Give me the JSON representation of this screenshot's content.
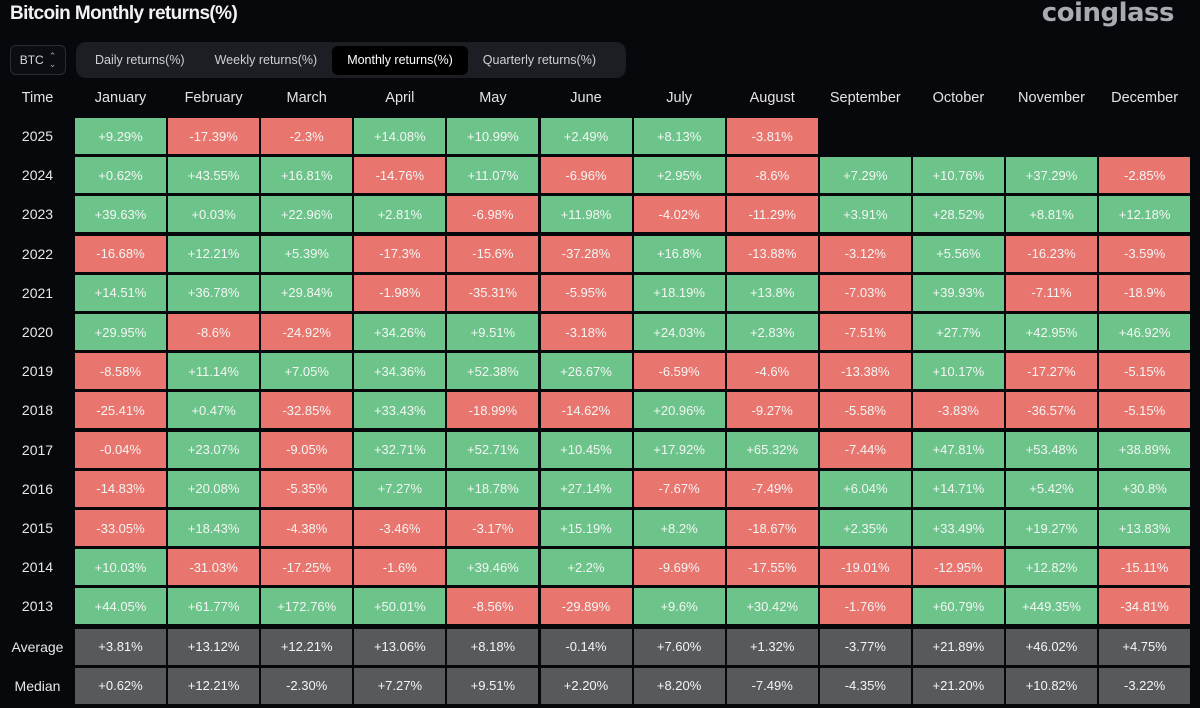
{
  "title": "Bitcoin Monthly returns(%)",
  "logo": "coinglass",
  "asset_select": {
    "value": "BTC"
  },
  "tabs": [
    {
      "label": "Daily returns(%)",
      "active": false
    },
    {
      "label": "Weekly returns(%)",
      "active": false
    },
    {
      "label": "Monthly returns(%)",
      "active": true
    },
    {
      "label": "Quarterly returns(%)",
      "active": false
    }
  ],
  "colors": {
    "positive": "#6cc48a",
    "negative": "#e9756f",
    "summary": "#58595c",
    "background": "#07080c"
  },
  "table": {
    "time_header": "Time",
    "months": [
      "January",
      "February",
      "March",
      "April",
      "May",
      "June",
      "July",
      "August",
      "September",
      "October",
      "November",
      "December"
    ],
    "rows": [
      {
        "year": "2025",
        "values": [
          "+9.29%",
          "-17.39%",
          "-2.3%",
          "+14.08%",
          "+10.99%",
          "+2.49%",
          "+8.13%",
          "-3.81%"
        ]
      },
      {
        "year": "2024",
        "values": [
          "+0.62%",
          "+43.55%",
          "+16.81%",
          "-14.76%",
          "+11.07%",
          "-6.96%",
          "+2.95%",
          "-8.6%",
          "+7.29%",
          "+10.76%",
          "+37.29%",
          "-2.85%"
        ]
      },
      {
        "year": "2023",
        "values": [
          "+39.63%",
          "+0.03%",
          "+22.96%",
          "+2.81%",
          "-6.98%",
          "+11.98%",
          "-4.02%",
          "-11.29%",
          "+3.91%",
          "+28.52%",
          "+8.81%",
          "+12.18%"
        ]
      },
      {
        "year": "2022",
        "values": [
          "-16.68%",
          "+12.21%",
          "+5.39%",
          "-17.3%",
          "-15.6%",
          "-37.28%",
          "+16.8%",
          "-13.88%",
          "-3.12%",
          "+5.56%",
          "-16.23%",
          "-3.59%"
        ]
      },
      {
        "year": "2021",
        "values": [
          "+14.51%",
          "+36.78%",
          "+29.84%",
          "-1.98%",
          "-35.31%",
          "-5.95%",
          "+18.19%",
          "+13.8%",
          "-7.03%",
          "+39.93%",
          "-7.11%",
          "-18.9%"
        ]
      },
      {
        "year": "2020",
        "values": [
          "+29.95%",
          "-8.6%",
          "-24.92%",
          "+34.26%",
          "+9.51%",
          "-3.18%",
          "+24.03%",
          "+2.83%",
          "-7.51%",
          "+27.7%",
          "+42.95%",
          "+46.92%"
        ]
      },
      {
        "year": "2019",
        "values": [
          "-8.58%",
          "+11.14%",
          "+7.05%",
          "+34.36%",
          "+52.38%",
          "+26.67%",
          "-6.59%",
          "-4.6%",
          "-13.38%",
          "+10.17%",
          "-17.27%",
          "-5.15%"
        ]
      },
      {
        "year": "2018",
        "values": [
          "-25.41%",
          "+0.47%",
          "-32.85%",
          "+33.43%",
          "-18.99%",
          "-14.62%",
          "+20.96%",
          "-9.27%",
          "-5.58%",
          "-3.83%",
          "-36.57%",
          "-5.15%"
        ]
      },
      {
        "year": "2017",
        "values": [
          "-0.04%",
          "+23.07%",
          "-9.05%",
          "+32.71%",
          "+52.71%",
          "+10.45%",
          "+17.92%",
          "+65.32%",
          "-7.44%",
          "+47.81%",
          "+53.48%",
          "+38.89%"
        ]
      },
      {
        "year": "2016",
        "values": [
          "-14.83%",
          "+20.08%",
          "-5.35%",
          "+7.27%",
          "+18.78%",
          "+27.14%",
          "-7.67%",
          "-7.49%",
          "+6.04%",
          "+14.71%",
          "+5.42%",
          "+30.8%"
        ]
      },
      {
        "year": "2015",
        "values": [
          "-33.05%",
          "+18.43%",
          "-4.38%",
          "-3.46%",
          "-3.17%",
          "+15.19%",
          "+8.2%",
          "-18.67%",
          "+2.35%",
          "+33.49%",
          "+19.27%",
          "+13.83%"
        ]
      },
      {
        "year": "2014",
        "values": [
          "+10.03%",
          "-31.03%",
          "-17.25%",
          "-1.6%",
          "+39.46%",
          "+2.2%",
          "-9.69%",
          "-17.55%",
          "-19.01%",
          "-12.95%",
          "+12.82%",
          "-15.11%"
        ]
      },
      {
        "year": "2013",
        "values": [
          "+44.05%",
          "+61.77%",
          "+172.76%",
          "+50.01%",
          "-8.56%",
          "-29.89%",
          "+9.6%",
          "+30.42%",
          "-1.76%",
          "+60.79%",
          "+449.35%",
          "-34.81%"
        ]
      }
    ],
    "summary": [
      {
        "label": "Average",
        "values": [
          "+3.81%",
          "+13.12%",
          "+12.21%",
          "+13.06%",
          "+8.18%",
          "-0.14%",
          "+7.60%",
          "+1.32%",
          "-3.77%",
          "+21.89%",
          "+46.02%",
          "+4.75%"
        ]
      },
      {
        "label": "Median",
        "values": [
          "+0.62%",
          "+12.21%",
          "-2.30%",
          "+7.27%",
          "+9.51%",
          "+2.20%",
          "+8.20%",
          "-7.49%",
          "-4.35%",
          "+21.20%",
          "+10.82%",
          "-3.22%"
        ]
      }
    ]
  }
}
